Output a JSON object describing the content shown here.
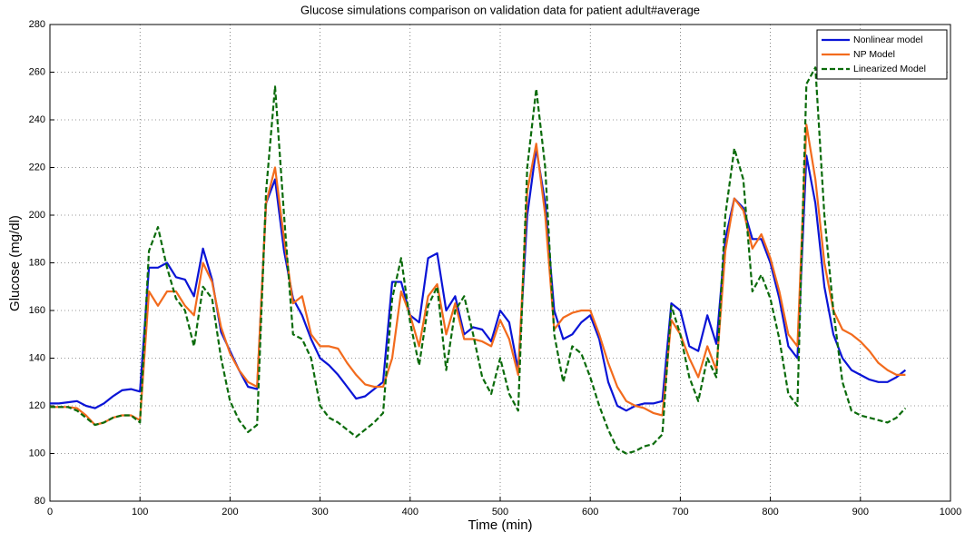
{
  "chart_data": {
    "type": "line",
    "title": "Glucose simulations comparison on validation data for patient adult#average",
    "x_label": "Time (min)",
    "y_label": "Glucose (mg/dl)",
    "xlim": [
      0,
      1000
    ],
    "xticks": [
      0,
      100,
      200,
      300,
      400,
      500,
      600,
      700,
      800,
      900,
      1000
    ],
    "ylim": [
      80,
      280
    ],
    "yticks": [
      80,
      100,
      120,
      140,
      160,
      180,
      200,
      220,
      240,
      260,
      280
    ],
    "grid": true,
    "legend": "top-right",
    "x": [
      0,
      10,
      20,
      30,
      40,
      50,
      60,
      70,
      80,
      90,
      100,
      110,
      120,
      130,
      140,
      150,
      160,
      170,
      180,
      190,
      200,
      210,
      220,
      230,
      240,
      250,
      260,
      270,
      280,
      290,
      300,
      310,
      320,
      330,
      340,
      350,
      360,
      370,
      380,
      390,
      400,
      410,
      420,
      430,
      440,
      450,
      460,
      470,
      480,
      490,
      500,
      510,
      520,
      530,
      540,
      550,
      560,
      570,
      580,
      590,
      600,
      610,
      620,
      630,
      640,
      650,
      660,
      670,
      680,
      690,
      700,
      710,
      720,
      730,
      740,
      750,
      760,
      770,
      780,
      790,
      800,
      810,
      820,
      830,
      840,
      850,
      860,
      870,
      880,
      890,
      900,
      910,
      920,
      930,
      940,
      950
    ],
    "series": [
      {
        "name": "Nonlinear model",
        "color": "#0a14d6",
        "dash": false,
        "values": [
          121,
          121,
          121.5,
          122,
          120,
          119,
          121,
          124,
          126.5,
          127,
          126,
          178,
          178,
          180,
          174,
          173,
          166,
          186,
          173,
          151,
          143,
          135,
          128,
          127,
          205,
          215,
          185,
          165,
          158,
          148,
          140,
          137,
          133,
          128,
          123,
          124,
          127,
          130,
          172,
          172,
          158,
          155,
          182,
          184,
          160,
          166,
          150,
          153,
          152,
          147,
          160,
          155,
          135,
          200,
          228,
          205,
          160,
          148,
          150,
          155,
          158,
          148,
          130,
          120,
          118,
          120,
          121,
          121,
          122,
          163,
          160,
          145,
          143,
          158,
          146,
          190,
          207,
          203,
          190,
          190,
          180,
          165,
          145,
          140,
          225,
          205,
          170,
          150,
          140,
          135,
          133,
          131,
          130,
          130,
          132,
          135
        ]
      },
      {
        "name": "NP Model",
        "color": "#f26b1d",
        "dash": false,
        "values": [
          119.5,
          119.5,
          119.5,
          119,
          116,
          112,
          113,
          115,
          116,
          116,
          114,
          168,
          162,
          168,
          168,
          162,
          158,
          180,
          172,
          153,
          142,
          135,
          130,
          128,
          205,
          220,
          190,
          163,
          166,
          150,
          145,
          145,
          144,
          138,
          133,
          129,
          128,
          128,
          140,
          168,
          158,
          145,
          166,
          171,
          150,
          163,
          148,
          148,
          147,
          145,
          156,
          148,
          133,
          210,
          230,
          200,
          152,
          157,
          159,
          160,
          160,
          150,
          138,
          128,
          122,
          120,
          119,
          117,
          116,
          156,
          150,
          140,
          132,
          145,
          135,
          185,
          207,
          202,
          186,
          192,
          182,
          168,
          150,
          145,
          238,
          215,
          180,
          160,
          152,
          150,
          147,
          143,
          138,
          135,
          133,
          133
        ]
      },
      {
        "name": "Linearized Model",
        "color": "#0b6b0b",
        "dash": true,
        "values": [
          119.5,
          119.5,
          119.5,
          118,
          115,
          112,
          113,
          115,
          116,
          116,
          113,
          185,
          195,
          178,
          165,
          160,
          145,
          170,
          165,
          140,
          122,
          114,
          109,
          112,
          210,
          254,
          200,
          150,
          148,
          140,
          120,
          115,
          113,
          110,
          107,
          110,
          113,
          117,
          165,
          182,
          155,
          137,
          162,
          170,
          135,
          160,
          166,
          150,
          132,
          125,
          140,
          125,
          118,
          220,
          253,
          220,
          150,
          130,
          145,
          142,
          132,
          120,
          110,
          102,
          100,
          101,
          103,
          104,
          108,
          162,
          150,
          132,
          122,
          140,
          132,
          200,
          228,
          215,
          168,
          175,
          165,
          148,
          125,
          120,
          255,
          262,
          200,
          160,
          130,
          118,
          116,
          115,
          114,
          113,
          115,
          119
        ]
      }
    ]
  }
}
